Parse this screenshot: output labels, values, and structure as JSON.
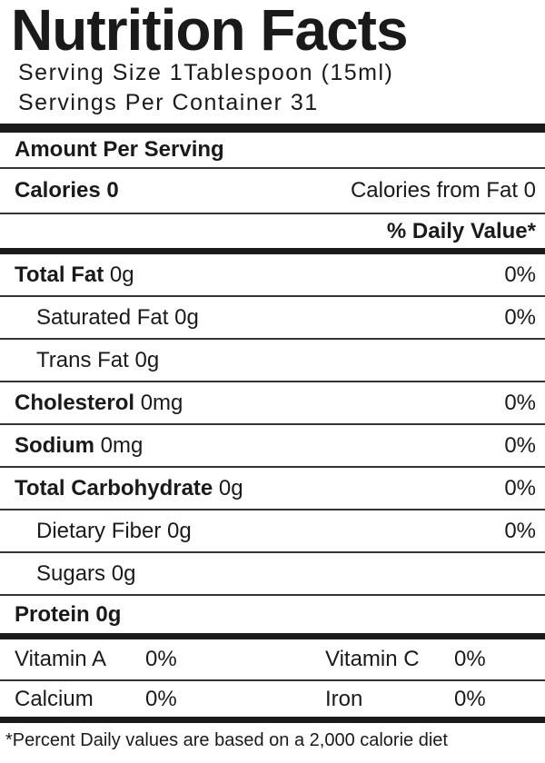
{
  "header": {
    "title": "Nutrition Facts",
    "serving_size": "Serving Size 1Tablespoon (15ml)",
    "servings_per_container": "Servings Per Container 31"
  },
  "amount_per_serving": "Amount Per Serving",
  "calories": {
    "label": "Calories 0",
    "from_fat": "Calories from Fat 0"
  },
  "daily_value_header": "% Daily Value*",
  "nutrients": [
    {
      "name": "Total Fat",
      "amount": "0g",
      "dv": "0%"
    },
    {
      "name": "Saturated Fat",
      "amount": "0g",
      "dv": "0%"
    },
    {
      "name": "Trans Fat",
      "amount": "0g"
    },
    {
      "name": "Cholesterol",
      "amount": "0mg",
      "dv": "0%"
    },
    {
      "name": "Sodium",
      "amount": "0mg",
      "dv": "0%"
    },
    {
      "name": "Total Carbohydrate",
      "amount": "0g",
      "dv": "0%"
    },
    {
      "name": "Dietary Fiber",
      "amount": "0g",
      "dv": "0%"
    },
    {
      "name": "Sugars",
      "amount": "0g"
    },
    {
      "name": "Protein",
      "amount": "0g"
    }
  ],
  "vitamins": [
    [
      "Vitamin A",
      "0%",
      "Vitamin C",
      "0%"
    ],
    [
      "Calcium",
      "0%",
      "Iron",
      "0%"
    ]
  ],
  "footnote": "*Percent Daily values are based on a 2,000 calorie diet"
}
